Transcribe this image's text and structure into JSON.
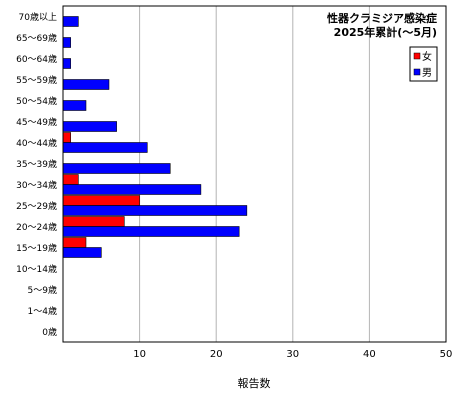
{
  "chart_data": {
    "type": "bar",
    "orientation": "horizontal",
    "title": "性器クラミジア感染症",
    "subtitle": "2025年累計(～5月)",
    "xlabel": "報告数",
    "ylabel": "",
    "xlim": [
      0,
      50
    ],
    "xticks": [
      "10",
      "20",
      "30",
      "40",
      "50"
    ],
    "grid": true,
    "legend_position": "top-right",
    "categories": [
      "70歳以上",
      "65～69歳",
      "60～64歳",
      "55～59歳",
      "50～54歳",
      "45～49歳",
      "40～44歳",
      "35～39歳",
      "30～34歳",
      "25～29歳",
      "20～24歳",
      "15～19歳",
      "10～14歳",
      "5～9歳",
      "1～4歳",
      "0歳"
    ],
    "series": [
      {
        "name": "女",
        "color": "#ff0000",
        "values": [
          0,
          0,
          0,
          0,
          0,
          0,
          1,
          0,
          2,
          10,
          8,
          3,
          0,
          0,
          0,
          0
        ]
      },
      {
        "name": "男",
        "color": "#0000ff",
        "values": [
          2,
          1,
          1,
          6,
          3,
          7,
          11,
          14,
          18,
          24,
          23,
          5,
          0,
          0,
          0,
          0
        ]
      }
    ]
  }
}
